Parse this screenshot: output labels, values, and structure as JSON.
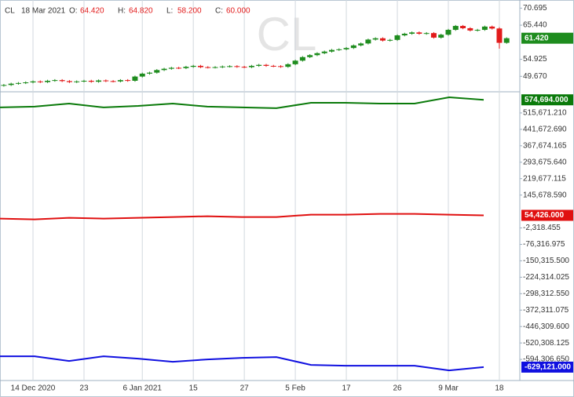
{
  "chart_data": [
    {
      "type": "candlestick",
      "symbol": "CL",
      "date": "18 Mar 2021",
      "ohlc": [
        {
          "label": "O:",
          "value": "64.420"
        },
        {
          "label": "H:",
          "value": "64.820"
        },
        {
          "label": "L:",
          "value": "58.200"
        },
        {
          "label": "C:",
          "value": "60.000"
        }
      ],
      "categories": [
        null,
        null,
        null,
        null,
        "14 Dec 2020",
        null,
        null,
        null,
        null,
        null,
        null,
        "23",
        null,
        null,
        null,
        null,
        null,
        null,
        null,
        "6 Jan 2021",
        null,
        null,
        null,
        null,
        null,
        null,
        "15",
        null,
        null,
        null,
        null,
        null,
        null,
        "27",
        null,
        null,
        null,
        null,
        null,
        null,
        "5 Feb",
        null,
        null,
        null,
        null,
        null,
        null,
        "17",
        null,
        null,
        null,
        null,
        null,
        null,
        "26",
        null,
        null,
        null,
        null,
        null,
        null,
        "9 Mar",
        null,
        null,
        null,
        null,
        null,
        null,
        "18",
        null
      ],
      "open": [
        46.8,
        47.0,
        47.4,
        47.6,
        47.8,
        48.1,
        47.9,
        48.3,
        48.5,
        48.2,
        47.9,
        48.1,
        48.3,
        48.0,
        48.4,
        48.2,
        48.1,
        48.5,
        48.3,
        49.6,
        50.5,
        50.8,
        51.6,
        52.0,
        52.3,
        52.2,
        52.6,
        52.9,
        52.5,
        52.4,
        52.5,
        52.7,
        52.8,
        52.6,
        52.5,
        52.9,
        53.2,
        52.9,
        52.8,
        52.6,
        53.4,
        54.5,
        55.6,
        56.2,
        56.8,
        57.3,
        57.8,
        58.0,
        58.4,
        59.2,
        59.8,
        61.0,
        61.4,
        60.7,
        60.9,
        62.3,
        62.8,
        63.2,
        62.8,
        63.0,
        61.6,
        62.5,
        64.0,
        65.2,
        64.5,
        63.8,
        64.0,
        65.0,
        64.42,
        60.0
      ],
      "high": [
        47.3,
        47.7,
        47.9,
        48.1,
        48.4,
        48.4,
        48.6,
        48.8,
        48.8,
        48.5,
        48.4,
        48.6,
        48.6,
        48.7,
        48.7,
        48.5,
        48.8,
        48.8,
        49.9,
        50.8,
        51.1,
        51.9,
        52.3,
        52.6,
        52.6,
        52.9,
        53.2,
        53.2,
        52.8,
        52.8,
        53.0,
        53.1,
        53.1,
        52.9,
        53.2,
        53.5,
        53.5,
        53.2,
        53.1,
        53.7,
        54.8,
        55.9,
        56.5,
        57.1,
        57.6,
        58.1,
        58.3,
        58.7,
        59.5,
        60.1,
        61.3,
        61.7,
        61.7,
        61.2,
        62.6,
        63.1,
        63.5,
        63.5,
        63.3,
        63.3,
        62.8,
        64.3,
        65.5,
        65.5,
        64.8,
        64.3,
        65.3,
        65.3,
        64.82,
        61.7
      ],
      "low": [
        46.5,
        46.7,
        47.1,
        47.3,
        47.5,
        47.6,
        47.6,
        48.0,
        47.9,
        47.6,
        47.6,
        47.8,
        47.7,
        47.7,
        47.9,
        47.8,
        47.8,
        48.0,
        48.0,
        49.3,
        50.2,
        50.5,
        51.3,
        51.7,
        51.9,
        51.9,
        52.3,
        52.2,
        52.1,
        52.1,
        52.2,
        52.4,
        52.3,
        52.2,
        52.2,
        52.6,
        52.6,
        52.5,
        52.3,
        52.3,
        53.1,
        54.2,
        55.3,
        55.9,
        56.5,
        57.0,
        57.5,
        57.7,
        58.1,
        58.9,
        59.5,
        60.7,
        60.4,
        60.4,
        60.6,
        62.0,
        62.5,
        62.5,
        62.5,
        61.3,
        61.3,
        62.2,
        63.7,
        64.2,
        63.5,
        63.5,
        63.7,
        64.1,
        58.2,
        59.7
      ],
      "close": [
        47.0,
        47.4,
        47.6,
        47.8,
        48.1,
        47.9,
        48.3,
        48.5,
        48.2,
        47.9,
        48.1,
        48.3,
        48.0,
        48.4,
        48.2,
        48.1,
        48.5,
        48.3,
        49.6,
        50.5,
        50.8,
        51.6,
        52.0,
        52.3,
        52.2,
        52.6,
        52.9,
        52.5,
        52.4,
        52.5,
        52.7,
        52.8,
        52.6,
        52.5,
        52.9,
        53.2,
        52.9,
        52.8,
        52.6,
        53.4,
        54.5,
        55.6,
        56.2,
        56.8,
        57.3,
        57.8,
        58.0,
        58.4,
        59.2,
        59.8,
        61.0,
        61.4,
        60.7,
        60.9,
        62.3,
        62.8,
        63.2,
        62.8,
        63.0,
        61.6,
        62.5,
        64.0,
        65.2,
        64.5,
        63.8,
        64.0,
        65.0,
        64.4,
        60.0,
        61.42
      ],
      "up_color": "#1e8c1e",
      "down_color": "#e21b1b",
      "last_label": "61.420",
      "ylim": [
        44.9,
        73.2
      ],
      "yticks": [
        70.695,
        {
          "value": 65.44,
          "label": "65.440"
        },
        54.925,
        {
          "value": 49.67,
          "label": "49.670"
        }
      ],
      "grid": true
    },
    {
      "type": "line",
      "categories": [
        null,
        null,
        null,
        null,
        null,
        null,
        null,
        null,
        null,
        null,
        null,
        null,
        null,
        null,
        null
      ],
      "series": [
        {
          "color": "#0a7a0a",
          "values": [
            540337,
            543861,
            557955,
            540337,
            547385,
            557955,
            543861,
            540337,
            536813,
            561479,
            561479,
            557955,
            557955,
            586145,
            574694
          ],
          "last_label": "574,694.000"
        },
        {
          "color": "#e01010",
          "values": [
            39931,
            36407,
            43455,
            39931,
            43455,
            46979,
            50503,
            46979,
            46979,
            57551,
            57551,
            61075,
            61075,
            57551,
            54426
          ],
          "last_label": "54,426.000"
        },
        {
          "color": "#1010e0",
          "values": [
            -580293,
            -580293,
            -601437,
            -580293,
            -590865,
            -604961,
            -594389,
            -587341,
            -583817,
            -619057,
            -622581,
            -622581,
            -622581,
            -643725,
            -629121
          ],
          "last_label": "-629,121.000"
        }
      ],
      "ylim": [
        -689448,
        610812
      ],
      "yticks": [
        {
          "value": 515671.21,
          "label": "515,671.210"
        },
        {
          "value": 441672.69,
          "label": "441,672.690"
        },
        {
          "value": 367674.165,
          "label": "367,674.165"
        },
        {
          "value": 293675.64,
          "label": "293,675.640"
        },
        {
          "value": 219677.115,
          "label": "219,677.115"
        },
        {
          "value": 145678.59,
          "label": "145,678.590"
        },
        {
          "value": -2318.455,
          "label": "-2,318.455"
        },
        {
          "value": -76316.975,
          "label": "-76,316.975"
        },
        {
          "value": -150315.5,
          "label": "-150,315.500"
        },
        {
          "value": -224314.025,
          "label": "-224,314.025"
        },
        {
          "value": -298312.55,
          "label": "-298,312.550"
        },
        {
          "value": -372311.075,
          "label": "-372,311.075"
        },
        {
          "value": -446309.6,
          "label": "-446,309.600"
        },
        {
          "value": -520308.125,
          "label": "-520,308.125"
        },
        {
          "value": -594306.65,
          "label": "-594,306.650"
        }
      ]
    }
  ]
}
